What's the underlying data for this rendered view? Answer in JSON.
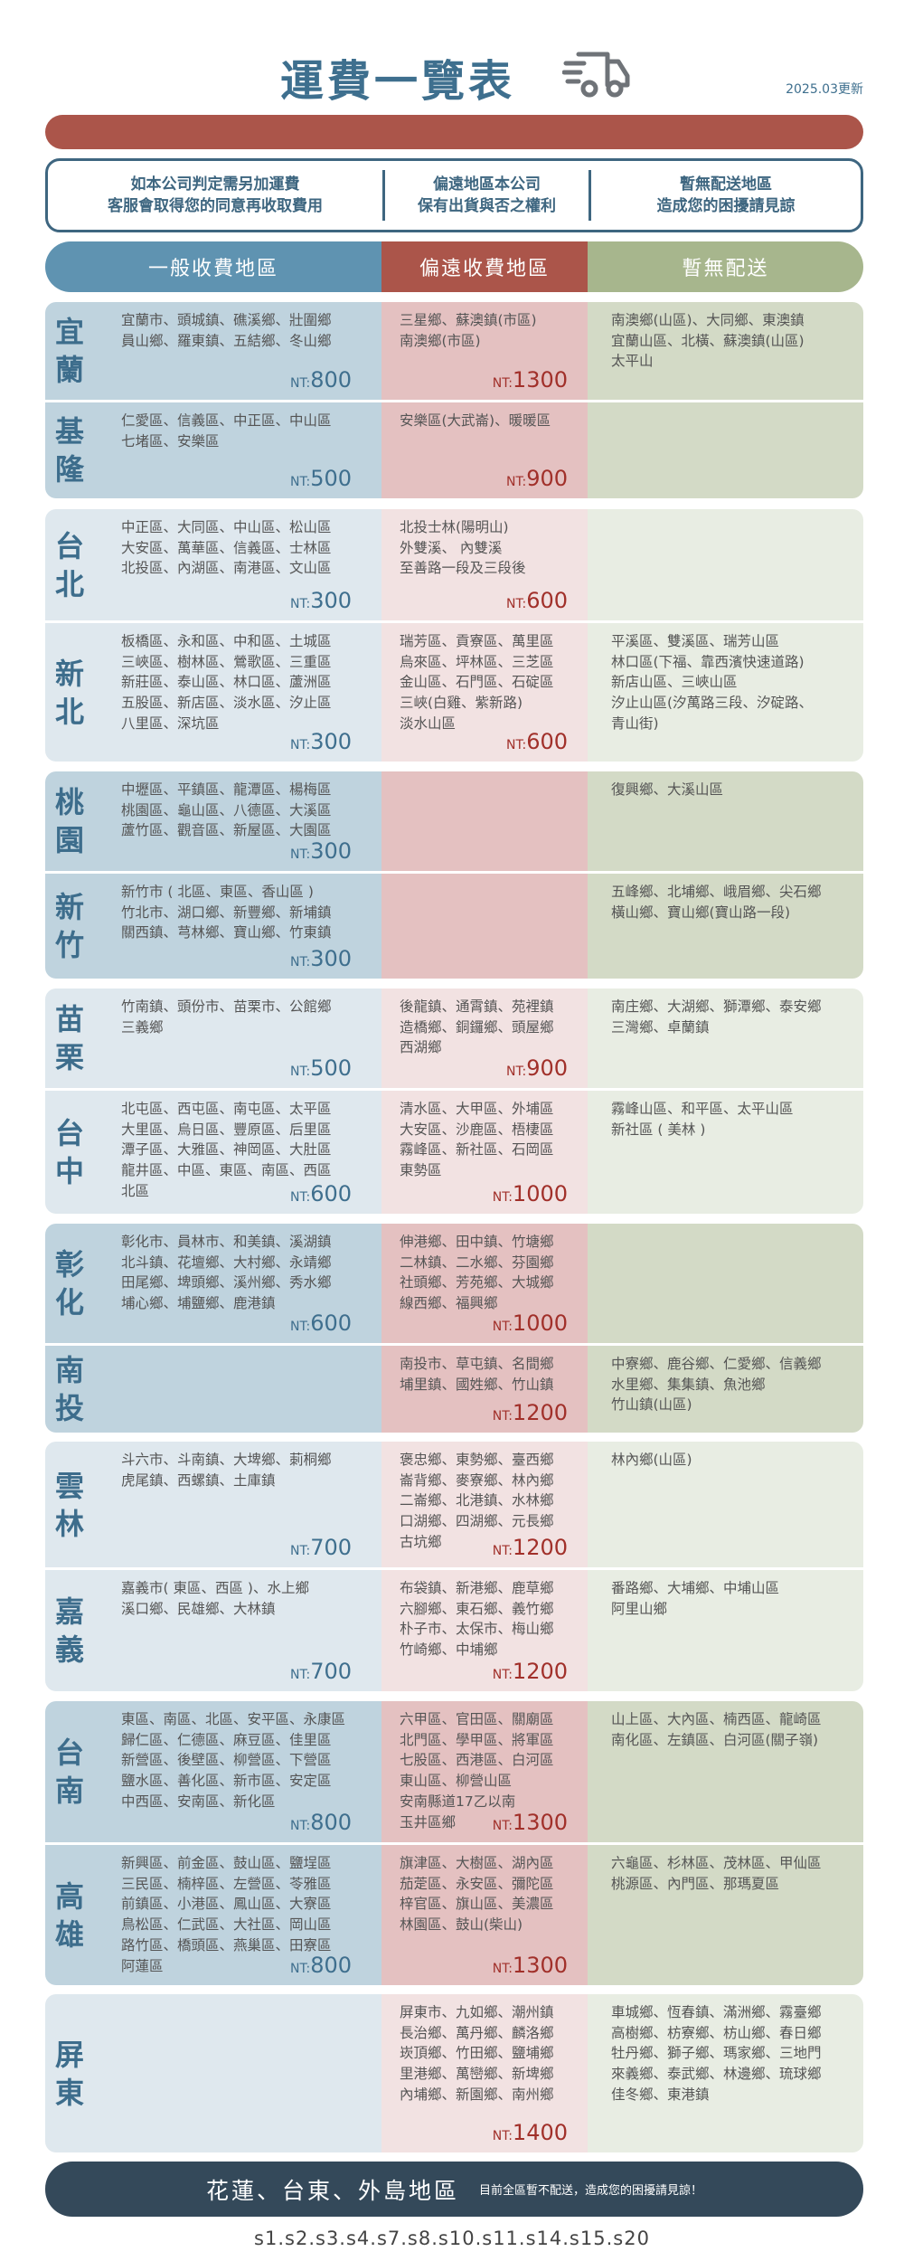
{
  "header": {
    "title": "運費一覽表",
    "truck_icon": "truck-icon",
    "updated": "2025.03更新"
  },
  "notice": [
    [
      "如本公司判定需另加運費",
      "客服會取得您的同意再收取費用"
    ],
    [
      "偏遠地區本公司",
      "保有出貨與否之權利"
    ],
    [
      "暫無配送地區",
      "造成您的困擾請見諒"
    ]
  ],
  "columns": {
    "general": "一般收費地區",
    "remote": "偏遠收費地區",
    "none": "暫無配送"
  },
  "colors": {
    "blue": "#5f93b1",
    "red": "#ab554a",
    "green": "#a7b68d",
    "dark": "#34495a",
    "name": "#3d6d8c"
  },
  "regions": [
    {
      "name": "宜蘭",
      "general": [
        "宜蘭市、頭城鎮、礁溪鄉、壯圍鄉",
        "員山鄉、羅東鎮、五結鄉、冬山鄉"
      ],
      "general_price": "800",
      "remote": [
        "三星鄉、蘇澳鎮(市區)",
        "南澳鄉(市區)"
      ],
      "remote_price": "1300",
      "none": [
        "南澳鄉(山區)、大同鄉、東澳鎮",
        "宜蘭山區、北橫、蘇澳鎮(山區)",
        "太平山"
      ]
    },
    {
      "name": "基隆",
      "general": [
        "仁愛區、信義區、中正區、中山區",
        "七堵區、安樂區"
      ],
      "general_price": "500",
      "remote": [
        "安樂區(大武崙)、暖暖區"
      ],
      "remote_price": "900",
      "none": []
    },
    {
      "name": "台北",
      "general": [
        "中正區、大同區、中山區、松山區",
        "大安區、萬華區、信義區、士林區",
        "北投區、內湖區、南港區、文山區"
      ],
      "general_price": "300",
      "remote": [
        "北投士林(陽明山)",
        "外雙溪、 內雙溪",
        "至善路一段及三段後"
      ],
      "remote_price": "600",
      "none": []
    },
    {
      "name": "新北",
      "general": [
        "板橋區、永和區、中和區、土城區",
        "三峽區、樹林區、鶯歌區、三重區",
        "新莊區、泰山區、林口區、蘆洲區",
        "五股區、新店區、淡水區、汐止區",
        "八里區、深坑區"
      ],
      "general_price": "300",
      "remote": [
        "瑞芳區、貢寮區、萬里區",
        "烏來區、坪林區、三芝區",
        "金山區、石門區、石碇區",
        "三峽(白雞、紫新路)",
        "淡水山區"
      ],
      "remote_price": "600",
      "none": [
        "平溪區、雙溪區、瑞芳山區",
        "林口區(下福、靠西濱快速道路)",
        "新店山區、三峽山區",
        "汐止山區(汐萬路三段、汐碇路、",
        "青山街)"
      ]
    },
    {
      "name": "桃園",
      "general": [
        "中壢區、平鎮區、龍潭區、楊梅區",
        "桃園區、龜山區、八德區、大溪區",
        "蘆竹區、觀音區、新屋區、大園區"
      ],
      "general_price": "300",
      "remote": [],
      "remote_price": "",
      "none": [
        "復興鄉、大溪山區"
      ]
    },
    {
      "name": "新竹",
      "general": [
        "新竹市 ( 北區、東區、香山區 )",
        "竹北市、湖口鄉、新豐鄉、新埔鎮",
        "關西鎮、芎林鄉、寶山鄉、竹東鎮"
      ],
      "general_price": "300",
      "remote": [],
      "remote_price": "",
      "none": [
        "五峰鄉、北埔鄉、峨眉鄉、尖石鄉",
        "橫山鄉、寶山鄉(寶山路一段)"
      ]
    },
    {
      "name": "苗栗",
      "general": [
        "竹南鎮、頭份市、苗栗市、公館鄉",
        "三義鄉"
      ],
      "general_price": "500",
      "remote": [
        "後龍鎮、通霄鎮、苑裡鎮",
        "造橋鄉、銅鑼鄉、頭屋鄉",
        "西湖鄉"
      ],
      "remote_price": "900",
      "none": [
        "南庄鄉、大湖鄉、獅潭鄉、泰安鄉",
        "三灣鄉、卓蘭鎮"
      ]
    },
    {
      "name": "台中",
      "general": [
        "北屯區、西屯區、南屯區、太平區",
        "大里區、烏日區、豐原區、后里區",
        "潭子區、大雅區、神岡區、大肚區",
        "龍井區、中區、東區、南區、西區",
        "北區"
      ],
      "general_price": "600",
      "remote": [
        "清水區、大甲區、外埔區",
        "大安區、沙鹿區、梧棲區",
        "霧峰區、新社區、石岡區",
        "東勢區"
      ],
      "remote_price": "1000",
      "none": [
        "霧峰山區、和平區、太平山區",
        "新社區 ( 美林 )"
      ]
    },
    {
      "name": "彰化",
      "general": [
        "彰化市、員林市、和美鎮、溪湖鎮",
        "北斗鎮、花壇鄉、大村鄉、永靖鄉",
        "田尾鄉、埤頭鄉、溪州鄉、秀水鄉",
        "埔心鄉、埔鹽鄉、鹿港鎮"
      ],
      "general_price": "600",
      "remote": [
        "伸港鄉、田中鎮、竹塘鄉",
        "二林鎮、二水鄉、芬園鄉",
        "社頭鄉、芳苑鄉、大城鄉",
        "線西鄉、福興鄉"
      ],
      "remote_price": "1000",
      "none": []
    },
    {
      "name": "南投",
      "general": [],
      "general_price": "",
      "remote": [
        "南投市、草屯鎮、名間鄉",
        "埔里鎮、國姓鄉、竹山鎮"
      ],
      "remote_price": "1200",
      "none": [
        "中寮鄉、鹿谷鄉、仁愛鄉、信義鄉",
        "水里鄉、集集鎮、魚池鄉",
        "竹山鎮(山區)"
      ]
    },
    {
      "name": "雲林",
      "general": [
        "斗六市、斗南鎮、大埤鄉、莿桐鄉",
        "虎尾鎮、西螺鎮、土庫鎮"
      ],
      "general_price": "700",
      "remote": [
        "褒忠鄉、東勢鄉、臺西鄉",
        "崙背鄉、麥寮鄉、林內鄉",
        "二崙鄉、北港鎮、水林鄉",
        "口湖鄉、四湖鄉、元長鄉",
        "古坑鄉"
      ],
      "remote_price": "1200",
      "none": [
        "林內鄉(山區)"
      ]
    },
    {
      "name": "嘉義",
      "general": [
        "嘉義市( 東區、西區 )、水上鄉",
        "溪口鄉、民雄鄉、大林鎮"
      ],
      "general_price": "700",
      "remote": [
        "布袋鎮、新港鄉、鹿草鄉",
        "六腳鄉、東石鄉、義竹鄉",
        "朴子市、太保市、梅山鄉",
        "竹崎鄉、中埔鄉"
      ],
      "remote_price": "1200",
      "none": [
        "番路鄉、大埔鄉、中埔山區",
        "阿里山鄉"
      ]
    },
    {
      "name": "台南",
      "general": [
        "東區、南區、北區、安平區、永康區",
        "歸仁區、仁德區、麻豆區、佳里區",
        "新營區、後壁區、柳營區、下營區",
        "鹽水區、善化區、新市區、安定區",
        "中西區、安南區、新化區"
      ],
      "general_price": "800",
      "remote": [
        "六甲區、官田區、關廟區",
        "北門區、學甲區、將軍區",
        "七股區、西港區、白河區",
        "東山區、柳營山區",
        "安南縣道17乙以南",
        "玉井區鄉"
      ],
      "remote_price": "1300",
      "none": [
        "山上區、大內區、楠西區、龍崎區",
        "南化區、左鎮區、白河區(關子嶺)"
      ]
    },
    {
      "name": "高雄",
      "general": [
        "新興區、前金區、鼓山區、鹽埕區",
        "三民區、楠梓區、左營區、苓雅區",
        "前鎮區、小港區、鳳山區、大寮區",
        "鳥松區、仁武區、大社區、岡山區",
        "路竹區、橋頭區、燕巢區、田寮區",
        "阿蓮區"
      ],
      "general_price": "800",
      "remote": [
        "旗津區、大樹區、湖內區",
        "茄萣區、永安區、彌陀區",
        "梓官區、旗山區、美濃區",
        "林園區、鼓山(柴山)"
      ],
      "remote_price": "1300",
      "none": [
        "六龜區、杉林區、茂林區、甲仙區",
        "桃源區、內門區、那瑪夏區"
      ]
    },
    {
      "name": "屏東",
      "general": [],
      "general_price": "",
      "remote": [
        "屏東市、九如鄉、潮州鎮",
        "長治鄉、萬丹鄉、麟洛鄉",
        "崁頂鄉、竹田鄉、鹽埔鄉",
        "里港鄉、萬巒鄉、新埤鄉",
        "內埔鄉、新園鄉、南州鄉"
      ],
      "remote_price": "1400",
      "none": [
        "車城鄉、恆春鎮、滿洲鄉、霧臺鄉",
        "高樹鄉、枋寮鄉、枋山鄉、春日鄉",
        "牡丹鄉、獅子鄉、瑪家鄉、三地門",
        "來義鄉、泰武鄉、林邊鄉、琉球鄉",
        "佳冬鄉、東港鎮"
      ]
    }
  ],
  "price_prefix": "NT:",
  "footer": {
    "regions": "花蓮、台東、外島地區",
    "note": "目前全區暫不配送，造成您的困擾請見諒！"
  },
  "codes": "s1.s2.s3.s4.s7.s8.s10.s11.s14.s15.s20"
}
